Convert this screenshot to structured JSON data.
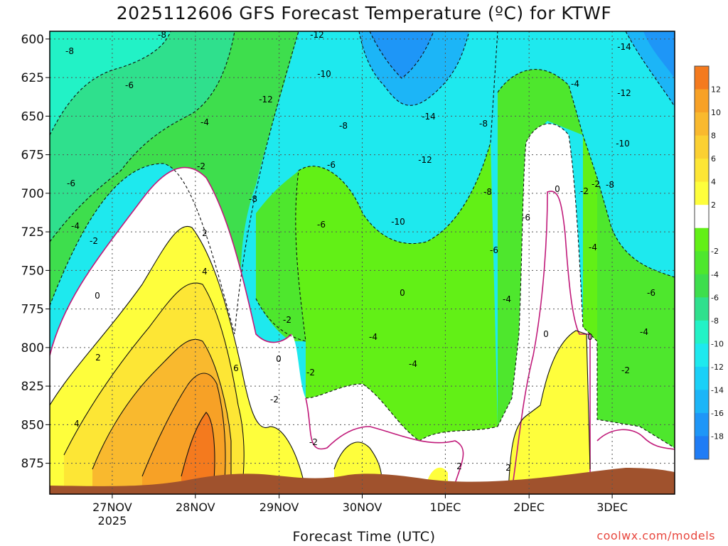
{
  "chart_data": {
    "type": "heatmap",
    "title": "2025112606 GFS Forecast Temperature (ºC) for KTWF",
    "xlabel": "Forecast Time (UTC)",
    "ylabel": "",
    "credit": "coolwx.com/models",
    "y_axis": {
      "ticks": [
        600,
        625,
        650,
        675,
        700,
        725,
        750,
        775,
        800,
        825,
        850,
        875
      ],
      "range": [
        595,
        895
      ],
      "inverted": true
    },
    "x_axis": {
      "ticks": [
        {
          "label": "27NOV",
          "sub": "2025",
          "pos": 0.1
        },
        {
          "label": "28NOV",
          "sub": "",
          "pos": 0.233
        },
        {
          "label": "29NOV",
          "sub": "",
          "pos": 0.367
        },
        {
          "label": "30NOV",
          "sub": "",
          "pos": 0.5
        },
        {
          "label": "1DEC",
          "sub": "",
          "pos": 0.633
        },
        {
          "label": "2DEC",
          "sub": "",
          "pos": 0.767
        },
        {
          "label": "3DEC",
          "sub": "",
          "pos": 0.9
        }
      ]
    },
    "grid": true,
    "colorbar": {
      "labels": [
        "12",
        "10",
        "8",
        "6",
        "4",
        "2",
        "-2",
        "-4",
        "-6",
        "-8",
        "-10",
        "-12",
        "-14",
        "-16",
        "-18"
      ],
      "colors": [
        "#f47a1e",
        "#f7a126",
        "#f9b92e",
        "#fbd032",
        "#fde635",
        "#fefe3c",
        "#ffffff",
        "#62f016",
        "#4ee72d",
        "#3ede4d",
        "#2fe08d",
        "#22f2c6",
        "#1ee9ee",
        "#1ad0f7",
        "#1cb5f7",
        "#1e96f7",
        "#1f7cf5"
      ]
    },
    "series": [
      {
        "name": "",
        "values": {
          "time_days": [
            0.0,
            0.5,
            1.0,
            1.5,
            2.0,
            2.5,
            3.0,
            3.5,
            4.0,
            4.5,
            5.0,
            5.5,
            6.0,
            6.5,
            7.0,
            7.5
          ],
          "bands": "temperature field"
        }
      }
    ],
    "contour_labels": [
      "-8",
      "-8",
      "-6",
      "-6",
      "-4",
      "-4",
      "-2",
      "-2",
      "0",
      "2",
      "2",
      "4",
      "4",
      "6",
      "-2",
      "-2",
      "0",
      "-12",
      "-12",
      "-10",
      "-8",
      "-8",
      "-6",
      "-6",
      "-4",
      "-4",
      "-2",
      "-2",
      "0",
      "-14",
      "-12",
      "-10",
      "-8",
      "-8",
      "-6",
      "-6",
      "-4",
      "-4",
      "-2",
      "0",
      "0",
      "2",
      "-14",
      "-12",
      "-10",
      "-8",
      "-6",
      "-4",
      "-2",
      "-2",
      "0",
      "-4",
      "2"
    ]
  }
}
